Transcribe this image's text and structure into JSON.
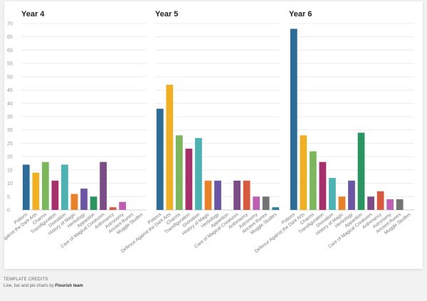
{
  "chart_data": [
    {
      "type": "bar",
      "title": "Year 4",
      "ylim": [
        0,
        70
      ],
      "yticks": [
        0,
        5,
        10,
        15,
        20,
        25,
        30,
        35,
        40,
        45,
        50,
        55,
        60,
        65,
        70
      ],
      "grid": true,
      "categories": [
        "Potions",
        "Defence Against the Dark Arts",
        "Charms",
        "Transfiguration",
        "Divination",
        "History of Magic",
        "Herbology",
        "Apparition",
        "Care of Magical Creatures",
        "Arithmancy",
        "Astronomy",
        "Ancient Runes",
        "Muggle Studies"
      ],
      "values": [
        17,
        14,
        18,
        11,
        17,
        6,
        8,
        5,
        18,
        1,
        3,
        0,
        0
      ]
    },
    {
      "type": "bar",
      "title": "Year 5",
      "ylim": [
        0,
        70
      ],
      "grid": true,
      "categories": [
        "Potions",
        "Defence Against the Dark Arts",
        "Charms",
        "Transfiguration",
        "Divination",
        "History of Magic",
        "Herbology",
        "Apparition",
        "Care of Magical Creatures",
        "Arithmancy",
        "Astronomy",
        "Ancient Runes",
        "Muggle Studies"
      ],
      "values": [
        38,
        47,
        28,
        23,
        27,
        11,
        11,
        0,
        11,
        11,
        5,
        5,
        1
      ]
    },
    {
      "type": "bar",
      "title": "Year 6",
      "ylim": [
        0,
        70
      ],
      "grid": true,
      "categories": [
        "Potions",
        "Defence Against the Dark Arts",
        "Charms",
        "Transfiguration",
        "Divination",
        "History of Magic",
        "Herbology",
        "Apparition",
        "Care of Magical Creatures",
        "Arithmancy",
        "Astronomy",
        "Ancient Runes",
        "Muggle Studies"
      ],
      "values": [
        68,
        28,
        22,
        18,
        12,
        5,
        11,
        29,
        5,
        7,
        4,
        4,
        0
      ]
    }
  ],
  "colors": [
    "#2e6c97",
    "#f1b024",
    "#7cb85b",
    "#a6306c",
    "#4eb1b2",
    "#e8822a",
    "#6a56a4",
    "#2b9461",
    "#7b4c85",
    "#d65a40",
    "#bf5fb3",
    "#737373",
    "#2f7fa4"
  ],
  "credits": {
    "heading": "Template credits",
    "text_before": "Line, bar and pie charts by ",
    "team": "Flourish team"
  }
}
